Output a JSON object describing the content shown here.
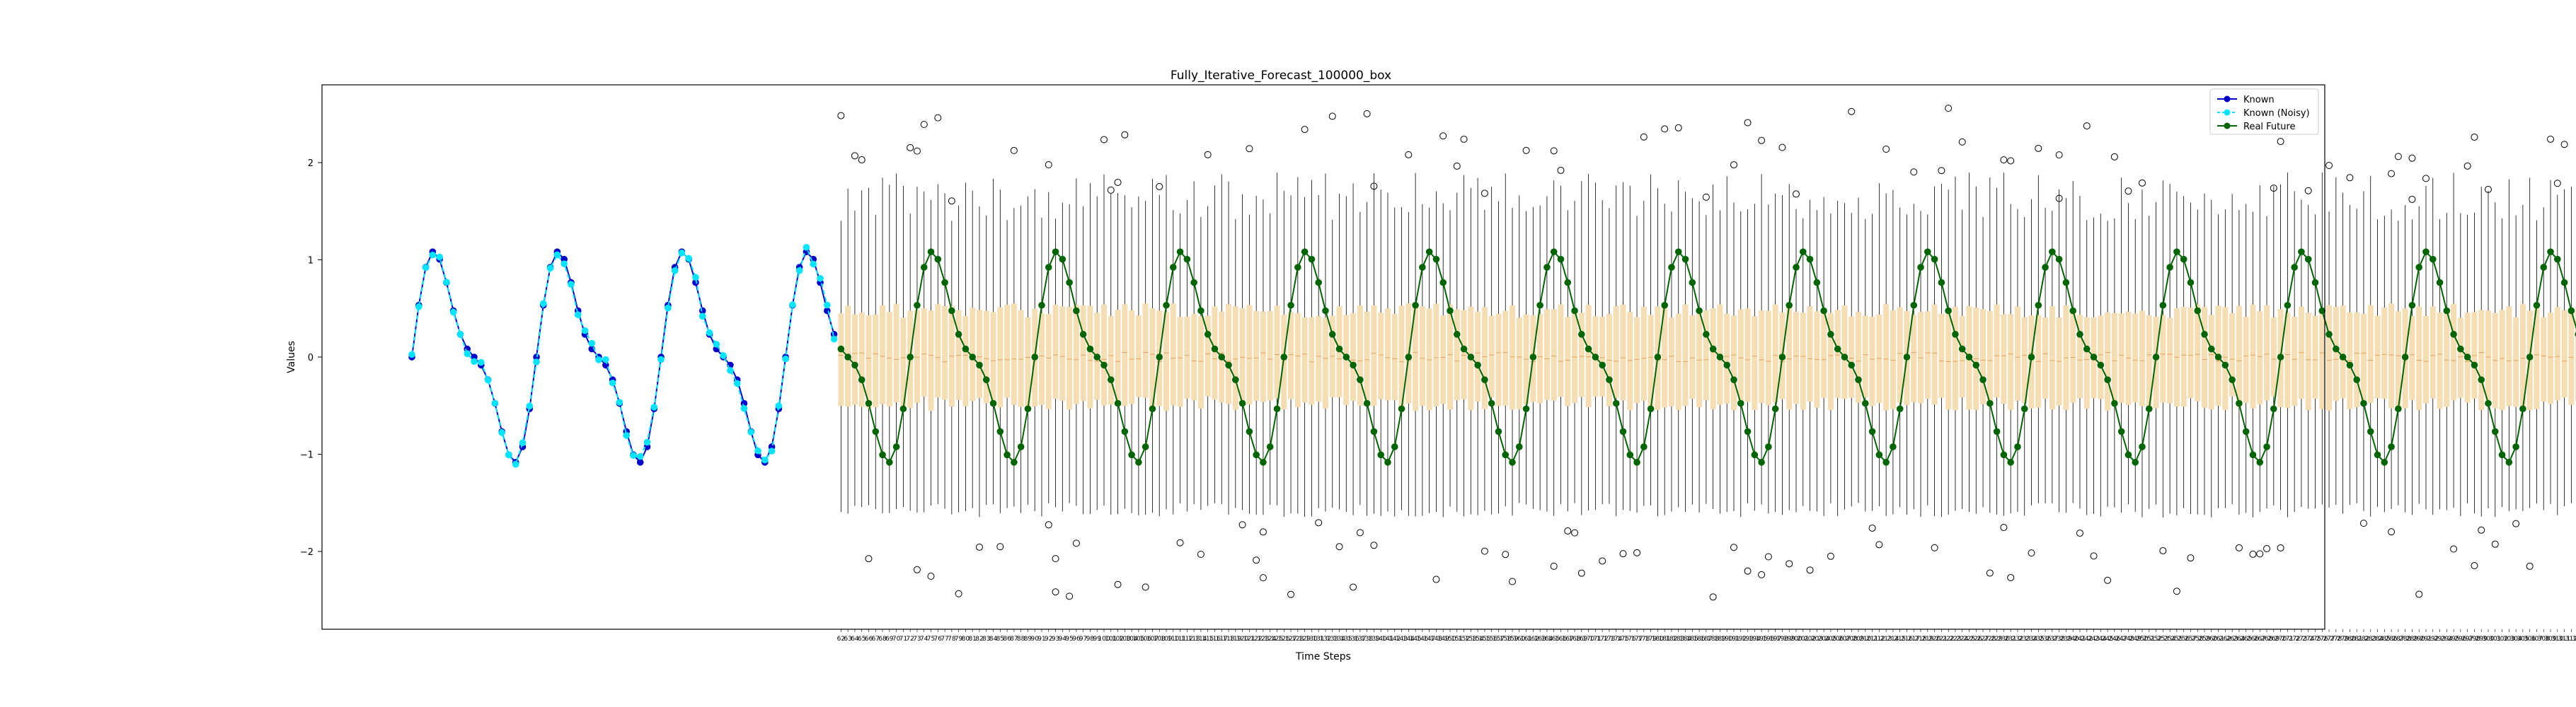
{
  "chart_data": {
    "type": "line",
    "title": "Fully_Iterative_Forecast_100000_box",
    "xlabel": "Time Steps",
    "ylabel": "Values",
    "ylim": [
      -2.8,
      2.8
    ],
    "yticks": [
      -2,
      -1,
      0,
      1,
      2
    ],
    "legend_position": "top-right",
    "grid": false,
    "colors": {
      "known": "#0000cd",
      "known_noisy": "#00e5ff",
      "real_future": "#006400",
      "box_fill": "#f5deb3",
      "whisker": "#000000"
    },
    "signal": {
      "formula": "0.9*sin(2*pi*t/18) + 0.35*sin(2*pi*t/9)",
      "known_range": [
        0,
        61
      ],
      "future_range": [
        62,
        325
      ]
    },
    "series": [
      {
        "name": "Known",
        "style": "line+markers",
        "x_start": 0,
        "x_end": 61
      },
      {
        "name": "Known (Noisy)",
        "style": "dashed line+markers",
        "x_start": 0,
        "x_end": 61
      },
      {
        "name": "Real Future",
        "style": "line+markers",
        "x_start": 62,
        "x_end": 325
      }
    ],
    "boxplots": {
      "x_start": 62,
      "x_end": 325,
      "median_approx": 0,
      "q1_approx": -0.4,
      "q3_approx": 0.4,
      "whisker_low_approx": -1.6,
      "whisker_high_approx": 1.8,
      "outlier_range": [
        -2.5,
        2.6
      ]
    }
  }
}
